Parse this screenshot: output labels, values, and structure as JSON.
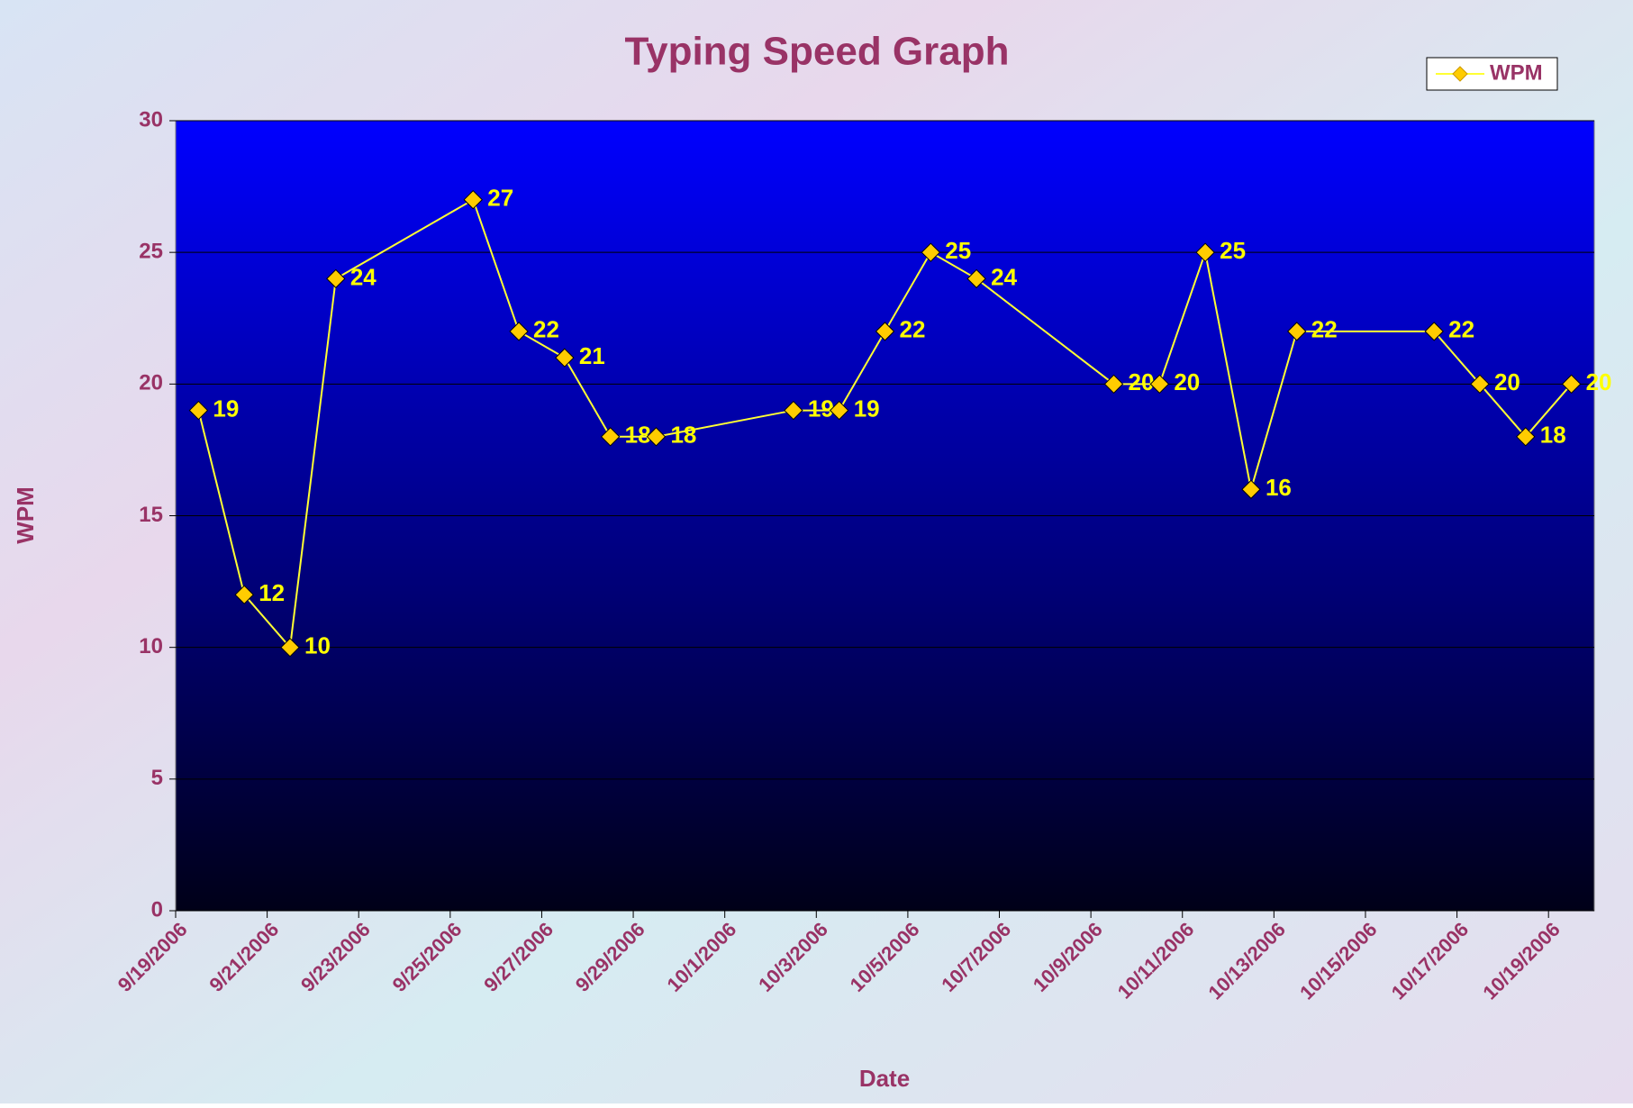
{
  "chart_data": {
    "type": "line",
    "title": "Typing Speed Graph",
    "x_label": "Date",
    "y_label": "WPM",
    "x": [
      "9/19/2006",
      "9/20/2006",
      "9/21/2006",
      "9/22/2006",
      "9/25/2006",
      "9/26/2006",
      "9/27/2006",
      "9/28/2006",
      "9/29/2006",
      "10/2/2006",
      "10/3/2006",
      "10/4/2006",
      "10/5/2006",
      "10/6/2006",
      "10/9/2006",
      "10/10/2006",
      "10/11/2006",
      "10/12/2006",
      "10/13/2006",
      "10/16/2006",
      "10/17/2006",
      "10/18/2006",
      "10/19/2006"
    ],
    "series": [
      {
        "name": "WPM",
        "color": "#ffff33",
        "marker_color": "#ffcc00",
        "values": [
          19,
          12,
          10,
          24,
          27,
          22,
          21,
          18,
          18,
          19,
          19,
          22,
          25,
          24,
          20,
          20,
          25,
          16,
          22,
          22,
          20,
          18,
          20
        ]
      }
    ],
    "xlim": [
      "9/19/2006",
      "10/20/2006"
    ],
    "xticks": [
      "9/19/2006",
      "9/21/2006",
      "9/23/2006",
      "9/25/2006",
      "9/27/2006",
      "9/29/2006",
      "10/1/2006",
      "10/3/2006",
      "10/5/2006",
      "10/7/2006",
      "10/9/2006",
      "10/11/2006",
      "10/13/2006",
      "10/15/2006",
      "10/17/2006",
      "10/19/2006"
    ],
    "ylim": [
      0,
      30
    ],
    "yticks": [
      0,
      5,
      10,
      15,
      20,
      25,
      30
    ],
    "grid": true,
    "legend": "top-right",
    "points_between_ticks": true
  }
}
